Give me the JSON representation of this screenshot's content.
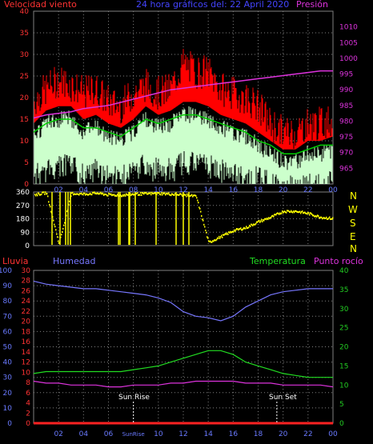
{
  "colors": {
    "background": "#000000",
    "grid": "#808080",
    "speed": "#ff0000",
    "gust_fill": "#ccffcc",
    "avg_line": "#00cc00",
    "pressure": "#dd33dd",
    "direction": "#ffff00",
    "rain": "#ff2222",
    "humidity": "#7777ff",
    "temperature": "#22dd22",
    "dewpoint": "#dd33dd",
    "sun_marker": "#ffffff",
    "axis_text_blue": "#6a7aff",
    "axis_text_green": "#22cc22",
    "axis_text_red": "#ff3333",
    "axis_text_pressure": "#dd33dd",
    "axis_text_yellow": "#ffff00"
  },
  "top_labels": {
    "speed": "Velocidad viento",
    "title": "24 hora gráficos del: 22 April 2020",
    "pressure": "Presión"
  },
  "compass": [
    "N",
    "W",
    "S",
    "E",
    "N"
  ],
  "bottom_labels": {
    "rain": "Lluvia",
    "humidity": "Humedad",
    "temperature": "Temperatura",
    "dewpoint": "Punto rocío"
  },
  "sun_labels": {
    "rise": "Sun Rise",
    "set": "Sun Set"
  },
  "time_ticks": [
    "02",
    "04",
    "06",
    "08",
    "10",
    "12",
    "14",
    "16",
    "18",
    "20",
    "22",
    "00"
  ],
  "time_ticks_bottom": [
    "02",
    "04",
    "06",
    "SunRise",
    "10",
    "12",
    "14",
    "16",
    "18",
    "20",
    "22",
    "00"
  ],
  "chart_data": [
    {
      "type": "area",
      "panel": "wind",
      "ylim_speed": [
        0,
        40
      ],
      "yticks_speed": [
        "0",
        "5",
        "10",
        "15",
        "20",
        "25",
        "30",
        "35",
        "40"
      ],
      "ylim_pressure": [
        960,
        1015
      ],
      "yticks_pressure": [
        "965",
        "970",
        "975",
        "980",
        "985",
        "990",
        "995",
        "1000",
        "1005",
        "1010"
      ],
      "x_hours": [
        0,
        1,
        2,
        3,
        4,
        5,
        6,
        7,
        8,
        9,
        10,
        11,
        12,
        13,
        14,
        15,
        16,
        17,
        18,
        19,
        20,
        21,
        22,
        23,
        24
      ],
      "series": [
        {
          "key": "gust_max",
          "values": [
            19,
            22,
            24,
            23,
            21,
            22,
            19,
            18,
            21,
            23,
            21,
            22,
            28,
            26,
            26,
            22,
            21,
            20,
            18,
            14,
            12,
            12,
            14,
            14,
            15
          ]
        },
        {
          "key": "speed",
          "values": [
            14,
            17,
            18,
            18,
            15,
            16,
            14,
            13,
            15,
            18,
            16,
            17,
            19,
            19,
            18,
            16,
            15,
            14,
            12,
            10,
            8,
            8,
            10,
            10,
            11
          ]
        },
        {
          "key": "average",
          "values": [
            12,
            14,
            15,
            15,
            13,
            13,
            12,
            11,
            13,
            15,
            14,
            15,
            16,
            16,
            15,
            14,
            13,
            12,
            10,
            9,
            7,
            7,
            8,
            9,
            9
          ]
        },
        {
          "key": "low",
          "values": [
            5,
            6,
            7,
            7,
            5,
            6,
            5,
            4,
            6,
            7,
            6,
            6,
            8,
            8,
            7,
            6,
            5,
            5,
            4,
            3,
            2,
            2,
            3,
            3,
            3
          ]
        },
        {
          "key": "pressure",
          "values": [
            981,
            982,
            982.5,
            983,
            984,
            984.5,
            985,
            986,
            987,
            988,
            989,
            990,
            990.5,
            991,
            991.5,
            992,
            992.5,
            993,
            993.5,
            994,
            994.5,
            995,
            995.5,
            996,
            996
          ]
        }
      ]
    },
    {
      "type": "scatter",
      "panel": "direction",
      "ylim": [
        0,
        360
      ],
      "yticks": [
        "0",
        "90",
        "180",
        "270",
        "360"
      ],
      "x_hours": [
        0,
        1,
        2,
        3,
        4,
        5,
        6,
        7,
        8,
        9,
        10,
        11,
        12,
        13,
        14,
        15,
        16,
        17,
        18,
        19,
        20,
        21,
        22,
        23,
        24
      ],
      "values": [
        340,
        355,
        10,
        350,
        345,
        352,
        340,
        338,
        345,
        348,
        350,
        345,
        340,
        330,
        20,
        60,
        100,
        120,
        160,
        190,
        230,
        230,
        215,
        190,
        180
      ]
    },
    {
      "type": "line",
      "panel": "temperature-humidity",
      "ylim_humidity": [
        0,
        100
      ],
      "yticks_humidity": [
        "0",
        "10",
        "20",
        "30",
        "40",
        "50",
        "60",
        "70",
        "80",
        "90",
        "100"
      ],
      "ylim_rain": [
        0,
        30
      ],
      "yticks_rain": [
        "0",
        "2",
        "4",
        "6",
        "8",
        "10",
        "12",
        "14",
        "16",
        "18",
        "20",
        "22",
        "24",
        "26",
        "28",
        "30"
      ],
      "ylim_temperature": [
        0,
        40
      ],
      "yticks_temperature": [
        "0",
        "5",
        "10",
        "15",
        "20",
        "25",
        "30",
        "35",
        "40"
      ],
      "x_hours": [
        0,
        1,
        2,
        3,
        4,
        5,
        6,
        7,
        8,
        9,
        10,
        11,
        12,
        13,
        14,
        15,
        16,
        17,
        18,
        19,
        20,
        21,
        22,
        23,
        24
      ],
      "sunrise_hour": 8.0,
      "sunset_hour": 19.5,
      "series": [
        {
          "key": "humidity",
          "values": [
            93,
            91,
            90,
            89,
            88,
            88,
            87,
            86,
            85,
            84,
            82,
            79,
            73,
            70,
            69,
            67,
            70,
            76,
            80,
            84,
            86,
            87,
            88,
            88,
            88
          ]
        },
        {
          "key": "temperature",
          "values": [
            13,
            13.5,
            13.5,
            13.5,
            13.5,
            13.5,
            13.5,
            13.5,
            14,
            14.5,
            15,
            16,
            17,
            18,
            19,
            19,
            18,
            16,
            15,
            14,
            13,
            12.5,
            12,
            12,
            12
          ]
        },
        {
          "key": "dewpoint",
          "values": [
            11,
            10.5,
            10.5,
            10,
            10,
            10,
            9.5,
            9.5,
            10,
            10,
            10,
            10.5,
            10.5,
            11,
            11,
            11,
            11,
            10.5,
            10.5,
            10.5,
            10,
            10,
            10,
            10,
            9.5
          ]
        },
        {
          "key": "rain",
          "values": [
            0,
            0,
            0,
            0,
            0,
            0,
            0,
            0,
            0,
            0,
            0,
            0,
            0,
            0,
            0,
            0,
            0,
            0,
            0,
            0,
            0,
            0,
            0,
            0,
            0
          ]
        }
      ]
    }
  ]
}
